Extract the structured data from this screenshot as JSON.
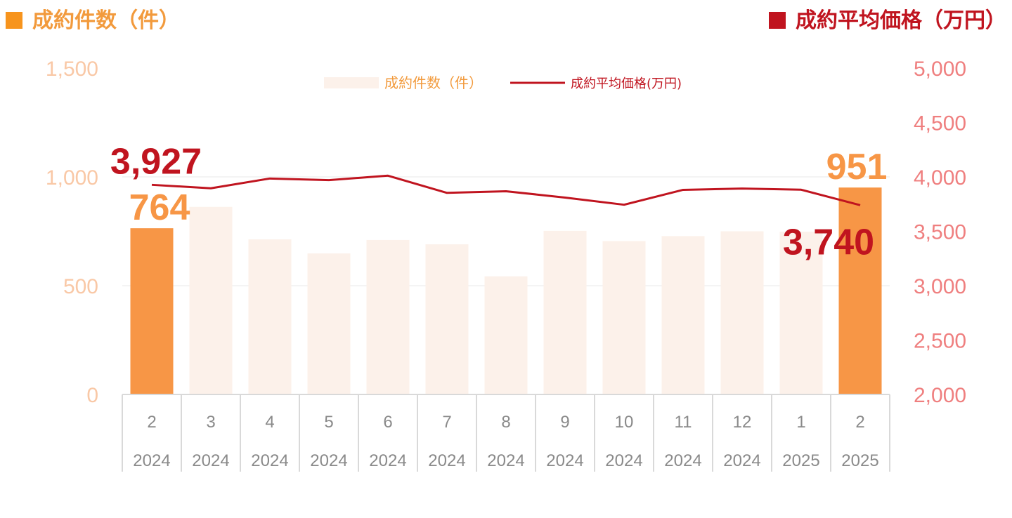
{
  "header": {
    "left_title": "成約件数（件）",
    "right_title": "成約平均価格（万円）",
    "left_color": "#f7941d",
    "right_color": "#c0141f"
  },
  "chart_data": {
    "type": "bar",
    "categories": [
      [
        "2",
        "2024"
      ],
      [
        "3",
        "2024"
      ],
      [
        "4",
        "2024"
      ],
      [
        "5",
        "2024"
      ],
      [
        "6",
        "2024"
      ],
      [
        "7",
        "2024"
      ],
      [
        "8",
        "2024"
      ],
      [
        "9",
        "2024"
      ],
      [
        "10",
        "2024"
      ],
      [
        "11",
        "2024"
      ],
      [
        "12",
        "2024"
      ],
      [
        "1",
        "2025"
      ],
      [
        "2",
        "2025"
      ]
    ],
    "series": [
      {
        "name": "成約件数（件）",
        "type": "bar",
        "axis": "left",
        "values": [
          764,
          862,
          713,
          648,
          710,
          690,
          543,
          752,
          705,
          728,
          750,
          748,
          951
        ],
        "highlight_indices": [
          0,
          12
        ],
        "color": "#fcf1ea",
        "highlight_color": "#f79646"
      },
      {
        "name": "成約平均価格(万円)",
        "type": "line",
        "axis": "right",
        "values": [
          3927,
          3895,
          3985,
          3970,
          4011,
          3853,
          3868,
          3810,
          3744,
          3881,
          3893,
          3882,
          3740
        ],
        "color": "#c0141f"
      }
    ],
    "y_left": {
      "ylim": [
        0,
        1500
      ],
      "ticks": [
        "0",
        "500",
        "1,000",
        "1,500"
      ],
      "color": "#f9c8a6"
    },
    "y_right": {
      "ylim": [
        2000,
        5000
      ],
      "ticks": [
        "2,000",
        "2,500",
        "3,000",
        "3,500",
        "4,000",
        "4,500",
        "5,000"
      ],
      "color": "#ef7f7f"
    },
    "data_labels": [
      {
        "text": "764",
        "series": 0,
        "index": 0,
        "color": "#f79646"
      },
      {
        "text": "951",
        "series": 0,
        "index": 12,
        "color": "#f79646"
      },
      {
        "text": "3,927",
        "series": 1,
        "index": 0,
        "color": "#c0141f"
      },
      {
        "text": "3,740",
        "series": 1,
        "index": 12,
        "color": "#c0141f"
      }
    ],
    "legend": {
      "position": "top-center"
    },
    "grid": true
  }
}
